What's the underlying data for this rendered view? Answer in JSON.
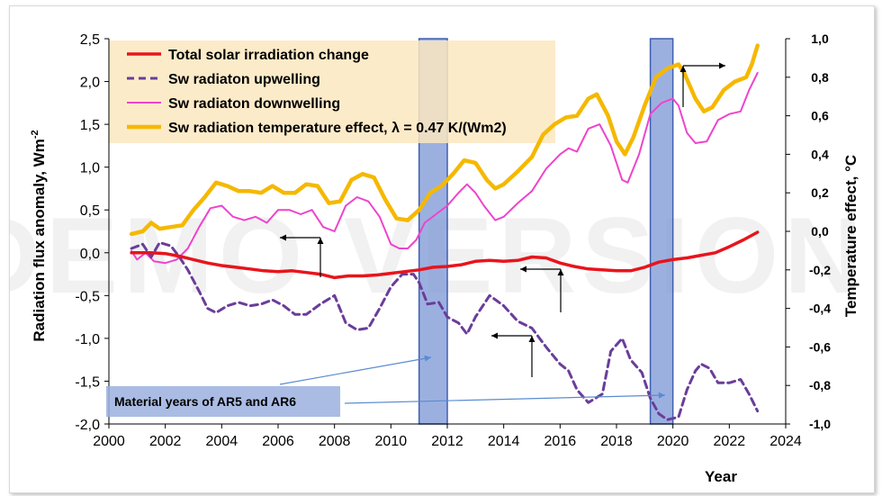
{
  "watermark": "DEMO VERSION",
  "colors": {
    "total_solar": "#e8141c",
    "sw_up": "#6a3d9a",
    "sw_down": "#ee44cc",
    "sw_temp": "#f5b800",
    "legend_bg": "#fbe8bf",
    "highlight": "#7b96d6",
    "note_bg": "#9bb0de"
  },
  "annotation": {
    "text": "Material years of AR5 and AR6"
  },
  "chart_data": {
    "type": "line",
    "title": "",
    "xlabel": "Year",
    "ylabel": "Radiation flux anomaly,  Wm",
    "ylabel_sup": "-2",
    "y2label": "Temperature effect, °C",
    "xlim": [
      2000,
      2024
    ],
    "ylim": [
      -2.0,
      2.5
    ],
    "y2lim": [
      -1.0,
      1.0
    ],
    "x_ticks": [
      "2000",
      "2002",
      "2004",
      "2006",
      "2008",
      "2010",
      "2012",
      "2014",
      "2016",
      "2018",
      "2020",
      "2022",
      "2024"
    ],
    "y_ticks": [
      "-2,0",
      "-1,5",
      "-1,0",
      "-0,5",
      "0,0",
      "0,5",
      "1,0",
      "1,5",
      "2,0",
      "2,5"
    ],
    "y2_ticks": [
      "-1,0",
      "-0,8",
      "-0,6",
      "-0,4",
      "-0,2",
      "0,0",
      "0,2",
      "0,4",
      "0,6",
      "0,8",
      "1,0"
    ],
    "highlight_years": [
      [
        2011.0,
        2012.0
      ],
      [
        2019.2,
        2020.0
      ]
    ],
    "legend_position": "top-left",
    "series": [
      {
        "name": "Total solar irradiation change",
        "style": "solid",
        "points": [
          [
            2000.8,
            0.0
          ],
          [
            2001.5,
            0.0
          ],
          [
            2002.0,
            -0.01
          ],
          [
            2002.5,
            -0.04
          ],
          [
            2003.0,
            -0.08
          ],
          [
            2003.5,
            -0.12
          ],
          [
            2004.0,
            -0.15
          ],
          [
            2004.5,
            -0.17
          ],
          [
            2005.0,
            -0.19
          ],
          [
            2005.5,
            -0.21
          ],
          [
            2006.0,
            -0.22
          ],
          [
            2006.5,
            -0.21
          ],
          [
            2007.0,
            -0.23
          ],
          [
            2007.5,
            -0.25
          ],
          [
            2008.0,
            -0.29
          ],
          [
            2008.5,
            -0.27
          ],
          [
            2009.0,
            -0.27
          ],
          [
            2009.5,
            -0.26
          ],
          [
            2010.0,
            -0.24
          ],
          [
            2010.5,
            -0.22
          ],
          [
            2011.0,
            -0.2
          ],
          [
            2011.5,
            -0.17
          ],
          [
            2012.0,
            -0.16
          ],
          [
            2012.5,
            -0.14
          ],
          [
            2013.0,
            -0.1
          ],
          [
            2013.5,
            -0.09
          ],
          [
            2014.0,
            -0.1
          ],
          [
            2014.5,
            -0.09
          ],
          [
            2015.0,
            -0.05
          ],
          [
            2015.5,
            -0.06
          ],
          [
            2016.0,
            -0.12
          ],
          [
            2016.5,
            -0.16
          ],
          [
            2017.0,
            -0.19
          ],
          [
            2017.5,
            -0.2
          ],
          [
            2018.0,
            -0.21
          ],
          [
            2018.5,
            -0.21
          ],
          [
            2019.0,
            -0.17
          ],
          [
            2019.5,
            -0.11
          ],
          [
            2020.0,
            -0.08
          ],
          [
            2020.5,
            -0.06
          ],
          [
            2021.0,
            -0.03
          ],
          [
            2021.5,
            0.0
          ],
          [
            2022.0,
            0.07
          ],
          [
            2022.5,
            0.15
          ],
          [
            2023.0,
            0.24
          ]
        ]
      },
      {
        "name": "Sw radiaton upwelling",
        "style": "dashed",
        "points": [
          [
            2000.8,
            0.05
          ],
          [
            2001.2,
            0.1
          ],
          [
            2001.5,
            -0.05
          ],
          [
            2001.8,
            0.12
          ],
          [
            2002.2,
            0.08
          ],
          [
            2002.5,
            -0.05
          ],
          [
            2002.8,
            -0.2
          ],
          [
            2003.2,
            -0.45
          ],
          [
            2003.5,
            -0.65
          ],
          [
            2003.8,
            -0.7
          ],
          [
            2004.2,
            -0.62
          ],
          [
            2004.6,
            -0.58
          ],
          [
            2005.0,
            -0.62
          ],
          [
            2005.4,
            -0.6
          ],
          [
            2005.8,
            -0.55
          ],
          [
            2006.2,
            -0.62
          ],
          [
            2006.6,
            -0.72
          ],
          [
            2007.0,
            -0.72
          ],
          [
            2007.5,
            -0.6
          ],
          [
            2008.0,
            -0.5
          ],
          [
            2008.4,
            -0.82
          ],
          [
            2008.8,
            -0.9
          ],
          [
            2009.2,
            -0.88
          ],
          [
            2009.6,
            -0.65
          ],
          [
            2010.0,
            -0.4
          ],
          [
            2010.4,
            -0.25
          ],
          [
            2010.8,
            -0.25
          ],
          [
            2011.0,
            -0.35
          ],
          [
            2011.3,
            -0.6
          ],
          [
            2011.7,
            -0.58
          ],
          [
            2012.0,
            -0.75
          ],
          [
            2012.4,
            -0.82
          ],
          [
            2012.7,
            -0.95
          ],
          [
            2013.0,
            -0.75
          ],
          [
            2013.5,
            -0.5
          ],
          [
            2014.0,
            -0.62
          ],
          [
            2014.5,
            -0.8
          ],
          [
            2015.0,
            -0.88
          ],
          [
            2015.5,
            -1.1
          ],
          [
            2016.0,
            -1.3
          ],
          [
            2016.3,
            -1.38
          ],
          [
            2016.6,
            -1.6
          ],
          [
            2017.0,
            -1.75
          ],
          [
            2017.5,
            -1.65
          ],
          [
            2017.8,
            -1.15
          ],
          [
            2018.2,
            -1.0
          ],
          [
            2018.5,
            -1.25
          ],
          [
            2018.9,
            -1.4
          ],
          [
            2019.2,
            -1.7
          ],
          [
            2019.5,
            -1.88
          ],
          [
            2019.8,
            -1.95
          ],
          [
            2020.2,
            -1.92
          ],
          [
            2020.5,
            -1.6
          ],
          [
            2020.8,
            -1.38
          ],
          [
            2021.0,
            -1.3
          ],
          [
            2021.3,
            -1.35
          ],
          [
            2021.6,
            -1.52
          ],
          [
            2022.0,
            -1.52
          ],
          [
            2022.4,
            -1.48
          ],
          [
            2022.7,
            -1.65
          ],
          [
            2023.0,
            -1.85
          ]
        ]
      },
      {
        "name": "Sw radiaton downwelling",
        "style": "solid",
        "points": [
          [
            2000.8,
            0.02
          ],
          [
            2001.0,
            -0.08
          ],
          [
            2001.3,
            0.0
          ],
          [
            2001.6,
            -0.1
          ],
          [
            2002.0,
            -0.12
          ],
          [
            2002.4,
            -0.08
          ],
          [
            2002.8,
            0.05
          ],
          [
            2003.2,
            0.3
          ],
          [
            2003.6,
            0.52
          ],
          [
            2004.0,
            0.55
          ],
          [
            2004.4,
            0.42
          ],
          [
            2004.8,
            0.38
          ],
          [
            2005.2,
            0.42
          ],
          [
            2005.6,
            0.35
          ],
          [
            2006.0,
            0.5
          ],
          [
            2006.4,
            0.5
          ],
          [
            2006.8,
            0.45
          ],
          [
            2007.2,
            0.5
          ],
          [
            2007.6,
            0.3
          ],
          [
            2008.0,
            0.25
          ],
          [
            2008.4,
            0.55
          ],
          [
            2008.8,
            0.65
          ],
          [
            2009.2,
            0.6
          ],
          [
            2009.6,
            0.42
          ],
          [
            2010.0,
            0.1
          ],
          [
            2010.3,
            0.05
          ],
          [
            2010.6,
            0.05
          ],
          [
            2010.9,
            0.15
          ],
          [
            2011.2,
            0.35
          ],
          [
            2011.6,
            0.45
          ],
          [
            2012.0,
            0.55
          ],
          [
            2012.4,
            0.7
          ],
          [
            2012.7,
            0.8
          ],
          [
            2013.0,
            0.7
          ],
          [
            2013.3,
            0.55
          ],
          [
            2013.7,
            0.38
          ],
          [
            2014.0,
            0.42
          ],
          [
            2014.5,
            0.58
          ],
          [
            2015.0,
            0.72
          ],
          [
            2015.5,
            0.98
          ],
          [
            2016.0,
            1.15
          ],
          [
            2016.3,
            1.22
          ],
          [
            2016.6,
            1.18
          ],
          [
            2017.0,
            1.45
          ],
          [
            2017.4,
            1.5
          ],
          [
            2017.8,
            1.25
          ],
          [
            2018.2,
            0.85
          ],
          [
            2018.4,
            0.82
          ],
          [
            2018.8,
            1.15
          ],
          [
            2019.2,
            1.62
          ],
          [
            2019.6,
            1.75
          ],
          [
            2020.0,
            1.8
          ],
          [
            2020.2,
            1.72
          ],
          [
            2020.5,
            1.4
          ],
          [
            2020.8,
            1.28
          ],
          [
            2021.2,
            1.3
          ],
          [
            2021.6,
            1.55
          ],
          [
            2022.0,
            1.62
          ],
          [
            2022.4,
            1.65
          ],
          [
            2022.7,
            1.9
          ],
          [
            2023.0,
            2.1
          ]
        ]
      },
      {
        "name": "Sw radiation temperature effect, λ = 0.47 K/(Wm2)",
        "style": "thick",
        "points": [
          [
            2000.8,
            0.22
          ],
          [
            2001.2,
            0.25
          ],
          [
            2001.5,
            0.35
          ],
          [
            2001.8,
            0.28
          ],
          [
            2002.2,
            0.3
          ],
          [
            2002.6,
            0.32
          ],
          [
            2003.0,
            0.5
          ],
          [
            2003.4,
            0.65
          ],
          [
            2003.8,
            0.82
          ],
          [
            2004.2,
            0.78
          ],
          [
            2004.6,
            0.72
          ],
          [
            2005.0,
            0.72
          ],
          [
            2005.4,
            0.7
          ],
          [
            2005.8,
            0.78
          ],
          [
            2006.2,
            0.7
          ],
          [
            2006.6,
            0.7
          ],
          [
            2007.0,
            0.8
          ],
          [
            2007.4,
            0.78
          ],
          [
            2007.8,
            0.58
          ],
          [
            2008.2,
            0.6
          ],
          [
            2008.6,
            0.85
          ],
          [
            2009.0,
            0.92
          ],
          [
            2009.4,
            0.88
          ],
          [
            2009.8,
            0.62
          ],
          [
            2010.2,
            0.4
          ],
          [
            2010.6,
            0.38
          ],
          [
            2011.0,
            0.5
          ],
          [
            2011.4,
            0.7
          ],
          [
            2011.8,
            0.78
          ],
          [
            2012.2,
            0.92
          ],
          [
            2012.6,
            1.08
          ],
          [
            2013.0,
            1.05
          ],
          [
            2013.4,
            0.85
          ],
          [
            2013.7,
            0.75
          ],
          [
            2014.0,
            0.8
          ],
          [
            2014.5,
            0.95
          ],
          [
            2015.0,
            1.12
          ],
          [
            2015.4,
            1.38
          ],
          [
            2015.8,
            1.5
          ],
          [
            2016.2,
            1.58
          ],
          [
            2016.6,
            1.6
          ],
          [
            2017.0,
            1.8
          ],
          [
            2017.3,
            1.85
          ],
          [
            2017.7,
            1.6
          ],
          [
            2018.0,
            1.3
          ],
          [
            2018.3,
            1.15
          ],
          [
            2018.6,
            1.35
          ],
          [
            2019.0,
            1.72
          ],
          [
            2019.4,
            2.05
          ],
          [
            2019.8,
            2.15
          ],
          [
            2020.2,
            2.2
          ],
          [
            2020.4,
            2.1
          ],
          [
            2020.8,
            1.8
          ],
          [
            2021.1,
            1.65
          ],
          [
            2021.4,
            1.7
          ],
          [
            2021.8,
            1.9
          ],
          [
            2022.2,
            2.0
          ],
          [
            2022.6,
            2.05
          ],
          [
            2022.8,
            2.2
          ],
          [
            2023.0,
            2.42
          ]
        ]
      }
    ]
  }
}
